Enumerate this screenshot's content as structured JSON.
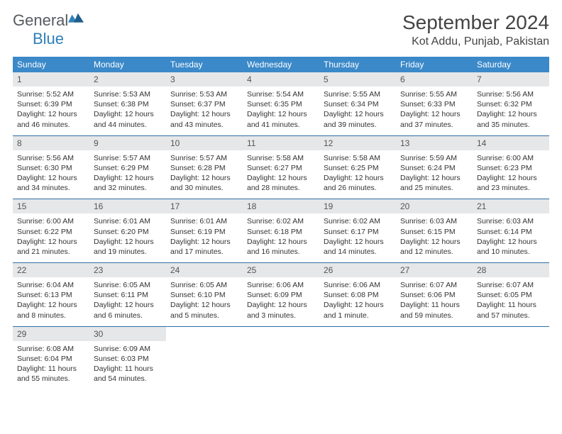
{
  "brand": {
    "general": "General",
    "blue": "Blue"
  },
  "title": "September 2024",
  "location": "Kot Addu, Punjab, Pakistan",
  "colors": {
    "header_bg": "#3b89c9",
    "header_fg": "#ffffff",
    "daynum_bg": "#e6e7e8",
    "row_border": "#2f6fa5",
    "logo_gray": "#555b60",
    "logo_blue": "#2f7fb9"
  },
  "columns": [
    "Sunday",
    "Monday",
    "Tuesday",
    "Wednesday",
    "Thursday",
    "Friday",
    "Saturday"
  ],
  "weeks": [
    [
      {
        "n": "1",
        "sr": "Sunrise: 5:52 AM",
        "ss": "Sunset: 6:39 PM",
        "dl": "Daylight: 12 hours and 46 minutes."
      },
      {
        "n": "2",
        "sr": "Sunrise: 5:53 AM",
        "ss": "Sunset: 6:38 PM",
        "dl": "Daylight: 12 hours and 44 minutes."
      },
      {
        "n": "3",
        "sr": "Sunrise: 5:53 AM",
        "ss": "Sunset: 6:37 PM",
        "dl": "Daylight: 12 hours and 43 minutes."
      },
      {
        "n": "4",
        "sr": "Sunrise: 5:54 AM",
        "ss": "Sunset: 6:35 PM",
        "dl": "Daylight: 12 hours and 41 minutes."
      },
      {
        "n": "5",
        "sr": "Sunrise: 5:55 AM",
        "ss": "Sunset: 6:34 PM",
        "dl": "Daylight: 12 hours and 39 minutes."
      },
      {
        "n": "6",
        "sr": "Sunrise: 5:55 AM",
        "ss": "Sunset: 6:33 PM",
        "dl": "Daylight: 12 hours and 37 minutes."
      },
      {
        "n": "7",
        "sr": "Sunrise: 5:56 AM",
        "ss": "Sunset: 6:32 PM",
        "dl": "Daylight: 12 hours and 35 minutes."
      }
    ],
    [
      {
        "n": "8",
        "sr": "Sunrise: 5:56 AM",
        "ss": "Sunset: 6:30 PM",
        "dl": "Daylight: 12 hours and 34 minutes."
      },
      {
        "n": "9",
        "sr": "Sunrise: 5:57 AM",
        "ss": "Sunset: 6:29 PM",
        "dl": "Daylight: 12 hours and 32 minutes."
      },
      {
        "n": "10",
        "sr": "Sunrise: 5:57 AM",
        "ss": "Sunset: 6:28 PM",
        "dl": "Daylight: 12 hours and 30 minutes."
      },
      {
        "n": "11",
        "sr": "Sunrise: 5:58 AM",
        "ss": "Sunset: 6:27 PM",
        "dl": "Daylight: 12 hours and 28 minutes."
      },
      {
        "n": "12",
        "sr": "Sunrise: 5:58 AM",
        "ss": "Sunset: 6:25 PM",
        "dl": "Daylight: 12 hours and 26 minutes."
      },
      {
        "n": "13",
        "sr": "Sunrise: 5:59 AM",
        "ss": "Sunset: 6:24 PM",
        "dl": "Daylight: 12 hours and 25 minutes."
      },
      {
        "n": "14",
        "sr": "Sunrise: 6:00 AM",
        "ss": "Sunset: 6:23 PM",
        "dl": "Daylight: 12 hours and 23 minutes."
      }
    ],
    [
      {
        "n": "15",
        "sr": "Sunrise: 6:00 AM",
        "ss": "Sunset: 6:22 PM",
        "dl": "Daylight: 12 hours and 21 minutes."
      },
      {
        "n": "16",
        "sr": "Sunrise: 6:01 AM",
        "ss": "Sunset: 6:20 PM",
        "dl": "Daylight: 12 hours and 19 minutes."
      },
      {
        "n": "17",
        "sr": "Sunrise: 6:01 AM",
        "ss": "Sunset: 6:19 PM",
        "dl": "Daylight: 12 hours and 17 minutes."
      },
      {
        "n": "18",
        "sr": "Sunrise: 6:02 AM",
        "ss": "Sunset: 6:18 PM",
        "dl": "Daylight: 12 hours and 16 minutes."
      },
      {
        "n": "19",
        "sr": "Sunrise: 6:02 AM",
        "ss": "Sunset: 6:17 PM",
        "dl": "Daylight: 12 hours and 14 minutes."
      },
      {
        "n": "20",
        "sr": "Sunrise: 6:03 AM",
        "ss": "Sunset: 6:15 PM",
        "dl": "Daylight: 12 hours and 12 minutes."
      },
      {
        "n": "21",
        "sr": "Sunrise: 6:03 AM",
        "ss": "Sunset: 6:14 PM",
        "dl": "Daylight: 12 hours and 10 minutes."
      }
    ],
    [
      {
        "n": "22",
        "sr": "Sunrise: 6:04 AM",
        "ss": "Sunset: 6:13 PM",
        "dl": "Daylight: 12 hours and 8 minutes."
      },
      {
        "n": "23",
        "sr": "Sunrise: 6:05 AM",
        "ss": "Sunset: 6:11 PM",
        "dl": "Daylight: 12 hours and 6 minutes."
      },
      {
        "n": "24",
        "sr": "Sunrise: 6:05 AM",
        "ss": "Sunset: 6:10 PM",
        "dl": "Daylight: 12 hours and 5 minutes."
      },
      {
        "n": "25",
        "sr": "Sunrise: 6:06 AM",
        "ss": "Sunset: 6:09 PM",
        "dl": "Daylight: 12 hours and 3 minutes."
      },
      {
        "n": "26",
        "sr": "Sunrise: 6:06 AM",
        "ss": "Sunset: 6:08 PM",
        "dl": "Daylight: 12 hours and 1 minute."
      },
      {
        "n": "27",
        "sr": "Sunrise: 6:07 AM",
        "ss": "Sunset: 6:06 PM",
        "dl": "Daylight: 11 hours and 59 minutes."
      },
      {
        "n": "28",
        "sr": "Sunrise: 6:07 AM",
        "ss": "Sunset: 6:05 PM",
        "dl": "Daylight: 11 hours and 57 minutes."
      }
    ],
    [
      {
        "n": "29",
        "sr": "Sunrise: 6:08 AM",
        "ss": "Sunset: 6:04 PM",
        "dl": "Daylight: 11 hours and 55 minutes."
      },
      {
        "n": "30",
        "sr": "Sunrise: 6:09 AM",
        "ss": "Sunset: 6:03 PM",
        "dl": "Daylight: 11 hours and 54 minutes."
      },
      {
        "empty": true
      },
      {
        "empty": true
      },
      {
        "empty": true
      },
      {
        "empty": true
      },
      {
        "empty": true
      }
    ]
  ]
}
